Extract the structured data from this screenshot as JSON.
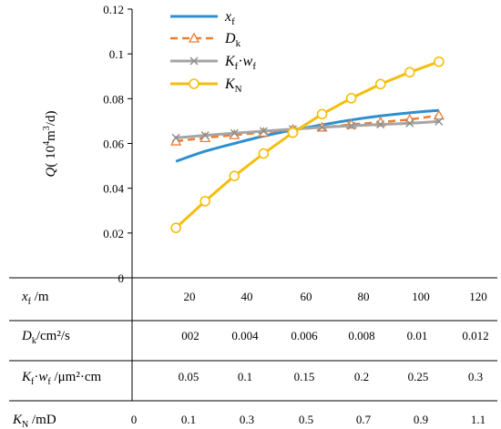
{
  "chart_data": {
    "type": "line",
    "ylabel_parts": {
      "q": "Q",
      "open": "( 10",
      "sup": "4",
      "unit": "m",
      "sup2": "3",
      "close": "/d)"
    },
    "ylim": [
      0,
      0.12
    ],
    "yticks": [
      "0",
      "0.02",
      "0.04",
      "0.06",
      "0.08",
      "0.1",
      "0.12"
    ],
    "grid": false,
    "legend_position": "top-left",
    "colors": {
      "xf": "#2E8FD0",
      "dk": "#ED7D31",
      "kfwf": "#A5A5A5",
      "kn": "#F5BE0E"
    },
    "series": [
      {
        "key": "xf",
        "legend": {
          "main": "x",
          "sub": "f"
        },
        "x": [
          20,
          30,
          40,
          50,
          60,
          70,
          80,
          90,
          100,
          110
        ],
        "values": [
          0.052,
          0.0565,
          0.06,
          0.0633,
          0.066,
          0.0683,
          0.0705,
          0.0723,
          0.0737,
          0.0748
        ],
        "marker": "none",
        "style": "solid"
      },
      {
        "key": "dk",
        "legend": {
          "main": "D",
          "sub": "k"
        },
        "x": [
          20,
          30,
          40,
          50,
          60,
          70,
          80,
          90,
          100,
          110
        ],
        "values": [
          0.061,
          0.0625,
          0.0638,
          0.0649,
          0.0662,
          0.0672,
          0.0685,
          0.0695,
          0.0707,
          0.0725
        ],
        "marker": "triangle",
        "style": "dashed"
      },
      {
        "key": "kfwf",
        "legend": {
          "main": "K",
          "sub": "f",
          "dot": "·",
          "main2": "w",
          "sub2": "f"
        },
        "x": [
          20,
          30,
          40,
          50,
          60,
          70,
          80,
          90,
          100,
          110
        ],
        "values": [
          0.0625,
          0.0636,
          0.0646,
          0.0655,
          0.0664,
          0.0672,
          0.0679,
          0.0685,
          0.069,
          0.0698
        ],
        "marker": "x",
        "style": "solid"
      },
      {
        "key": "kn",
        "legend": {
          "main": "K",
          "sub": "N"
        },
        "x": [
          20,
          30,
          40,
          50,
          60,
          70,
          80,
          90,
          100,
          110
        ],
        "values": [
          0.0223,
          0.0342,
          0.0455,
          0.0555,
          0.0648,
          0.0731,
          0.0802,
          0.0865,
          0.0918,
          0.0965
        ],
        "marker": "circle",
        "style": "solid"
      }
    ],
    "x_axes": [
      {
        "key": "xf",
        "label": {
          "main": "x",
          "sub": "f",
          "unit": " /m"
        },
        "ticks": [
          "20",
          "40",
          "60",
          "80",
          "100",
          "120"
        ]
      },
      {
        "key": "dk",
        "label": {
          "main": "D",
          "sub": "k",
          "unit": "/cm²/s"
        },
        "ticks": [
          "002",
          "0.004",
          "0.006",
          "0.008",
          "0.01",
          "0.012"
        ]
      },
      {
        "key": "kfwf",
        "label": {
          "main": "K",
          "sub": "f",
          "dot": "·",
          "main2": "w",
          "sub2": "f",
          "unit": " /μm²·cm"
        },
        "ticks": [
          "0.05",
          "0.1",
          "0.15",
          "0.2",
          "0.25",
          "0.3"
        ]
      },
      {
        "key": "kn",
        "label": {
          "main": "K",
          "sub": "N",
          "unit": " /mD"
        },
        "ticks": [
          "0",
          "0.1",
          "0.3",
          "0.5",
          "0.7",
          "0.9",
          "1.1"
        ]
      }
    ]
  }
}
